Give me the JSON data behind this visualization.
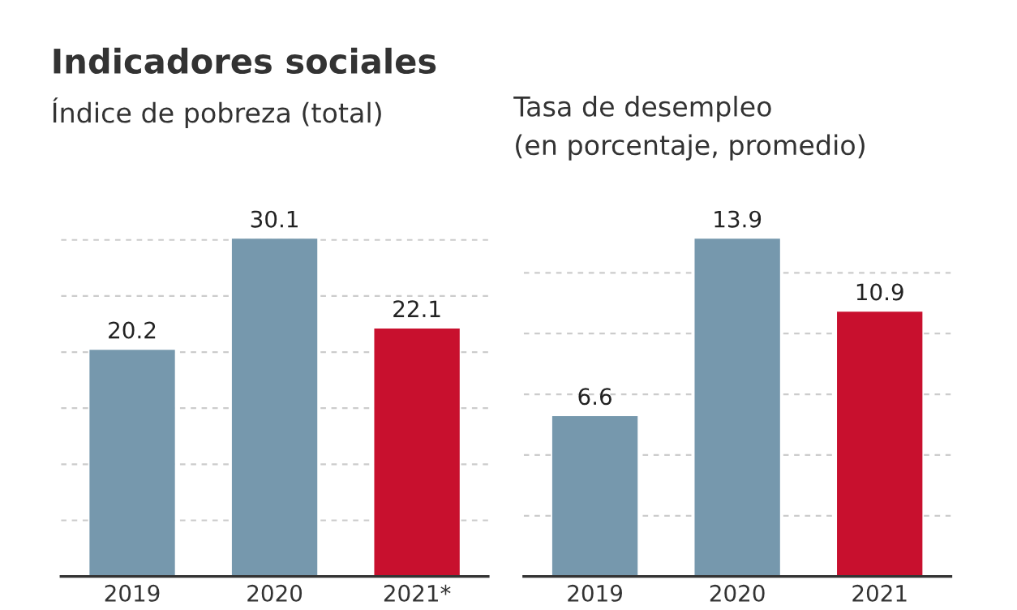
{
  "chart_data": [
    {
      "type": "bar",
      "title": "Indicadores sociales",
      "subtitle": "Índice de pobreza (total)",
      "categories": [
        "2019",
        "2020",
        "2021*"
      ],
      "values": [
        20.2,
        30.1,
        22.1
      ],
      "colors": [
        "#7698ad",
        "#7698ad",
        "#c8102e"
      ],
      "yticks": [
        {
          "value": 5,
          "label": null
        },
        {
          "value": 10,
          "label": null
        },
        {
          "value": 15,
          "label": null
        },
        {
          "value": 20,
          "label": null
        },
        {
          "value": 25,
          "label": null
        },
        {
          "value": 30,
          "label": null
        }
      ],
      "grid": "y",
      "data_labels": true,
      "tick_labels": "x"
    },
    {
      "type": "bar",
      "title": "Tasa de desempleo\n(en porcentaje, promedio)",
      "categories": [
        "2019",
        "2020",
        "2021"
      ],
      "values": [
        6.6,
        13.9,
        10.9
      ],
      "colors": [
        "#7698ad",
        "#7698ad",
        "#c8102e"
      ],
      "yticks": [
        {
          "value": 2.5,
          "label": null
        },
        {
          "value": 5,
          "label": null
        },
        {
          "value": 7.5,
          "label": null
        },
        {
          "value": 10,
          "label": null
        },
        {
          "value": 12.5,
          "label": null
        }
      ],
      "grid": "y",
      "data_labels": true,
      "tick_labels": "x"
    }
  ]
}
